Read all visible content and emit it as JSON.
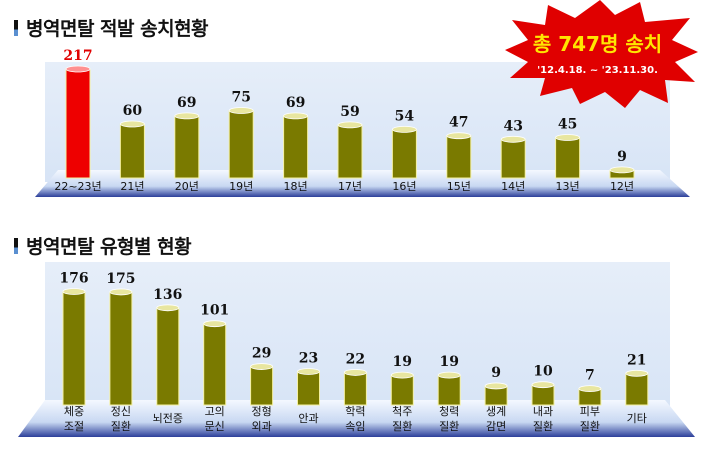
{
  "header1": {
    "title": "병역면탈 적발 송치현황"
  },
  "header2": {
    "title": "병역면탈 유형별 현황"
  },
  "badge": {
    "total": "총 747명 송치",
    "period": "'12.4.18. ~ '23.11.30."
  },
  "colors": {
    "bar": "#7a7a00",
    "highlight": "#ee0000",
    "panel": "#e4eefa",
    "burst": "#e00000"
  },
  "chart_data": [
    {
      "type": "bar",
      "title": "병역면탈 적발 송치현황",
      "categories": [
        "22~23년",
        "21년",
        "20년",
        "19년",
        "18년",
        "17년",
        "16년",
        "15년",
        "14년",
        "13년",
        "12년"
      ],
      "values": [
        217,
        60,
        69,
        75,
        69,
        59,
        54,
        47,
        43,
        45,
        9
      ],
      "highlight_index": 0
    },
    {
      "type": "bar",
      "title": "병역면탈 유형별 현황",
      "categories": [
        [
          "체중",
          "조절"
        ],
        [
          "정신",
          "질환"
        ],
        [
          "뇌전증"
        ],
        [
          "고의",
          "문신"
        ],
        [
          "정형",
          "외과"
        ],
        [
          "안과"
        ],
        [
          "학력",
          "속임"
        ],
        [
          "척주",
          "질환"
        ],
        [
          "청력",
          "질환"
        ],
        [
          "생계",
          "감면"
        ],
        [
          "내과",
          "질환"
        ],
        [
          "피부",
          "질환"
        ],
        [
          "기타"
        ]
      ],
      "values": [
        176,
        175,
        136,
        101,
        29,
        23,
        22,
        19,
        19,
        9,
        10,
        7,
        21
      ]
    }
  ]
}
